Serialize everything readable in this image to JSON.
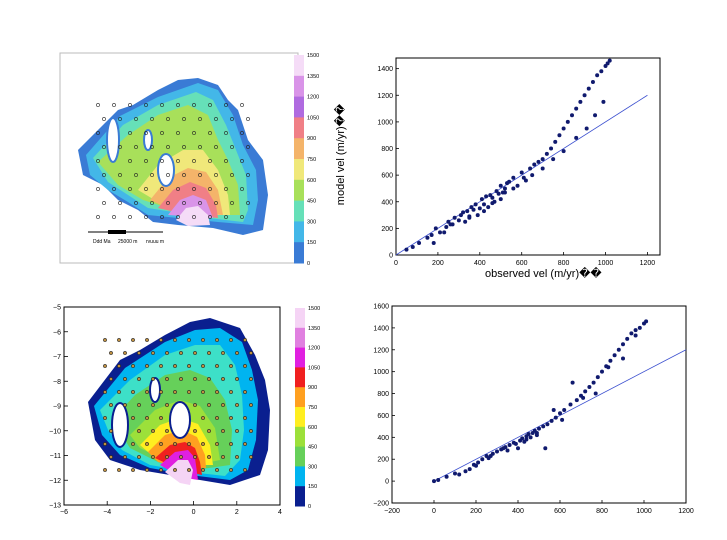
{
  "maps": {
    "top": {
      "cbar_ticks": [
        "1500",
        "1350",
        "1200",
        "1050",
        "900",
        "750",
        "600",
        "450",
        "300",
        "150",
        "0"
      ],
      "scalebar_labels": [
        "Ddd Ma",
        "25000 m",
        "rvuuu m"
      ]
    },
    "bottom": {
      "cbar_ticks": [
        "1500",
        "1350",
        "1200",
        "1050",
        "900",
        "750",
        "600",
        "450",
        "300",
        "150",
        "0"
      ],
      "xticks": [
        "−6",
        "−4",
        "−2",
        "0",
        "2",
        "4"
      ],
      "yticks": [
        "−5",
        "−6",
        "−7",
        "−8",
        "−9",
        "−10",
        "−11",
        "−12",
        "−13"
      ]
    }
  },
  "chart_data": [
    {
      "type": "scatter",
      "xlabel": "observed vel (m/yr)��",
      "ylabel": "model vel (m/yr)��",
      "xlim": [
        0,
        1260
      ],
      "ylim": [
        0,
        1480
      ],
      "xticks": [
        "0",
        "200",
        "400",
        "600",
        "800",
        "1000",
        "1200"
      ],
      "yticks": [
        "0",
        "200",
        "400",
        "600",
        "800",
        "1000",
        "1200",
        "1400"
      ],
      "line": {
        "x": [
          0,
          1200
        ],
        "y": [
          0,
          1200
        ]
      },
      "points": {
        "x": [
          50,
          80,
          110,
          150,
          170,
          190,
          210,
          240,
          250,
          260,
          280,
          300,
          310,
          320,
          330,
          340,
          350,
          360,
          370,
          380,
          390,
          400,
          410,
          420,
          430,
          440,
          450,
          460,
          470,
          480,
          490,
          500,
          510,
          520,
          530,
          540,
          560,
          580,
          600,
          620,
          640,
          660,
          680,
          700,
          720,
          740,
          760,
          780,
          800,
          820,
          840,
          860,
          880,
          900,
          920,
          940,
          960,
          980,
          1000,
          1010,
          1020,
          180,
          230,
          270,
          350,
          420,
          460,
          500,
          520,
          560,
          610,
          650,
          700,
          750,
          800,
          860,
          910,
          950,
          990
        ],
        "y": [
          40,
          60,
          90,
          130,
          150,
          200,
          170,
          210,
          250,
          230,
          280,
          260,
          300,
          320,
          250,
          330,
          290,
          360,
          340,
          380,
          300,
          350,
          420,
          380,
          440,
          360,
          450,
          430,
          400,
          480,
          460,
          520,
          470,
          500,
          540,
          550,
          580,
          520,
          620,
          560,
          650,
          680,
          700,
          720,
          760,
          800,
          850,
          900,
          950,
          1000,
          1050,
          1100,
          1150,
          1200,
          1250,
          1300,
          1350,
          1380,
          1420,
          1440,
          1460,
          90,
          170,
          230,
          280,
          330,
          390,
          420,
          470,
          500,
          580,
          600,
          650,
          720,
          780,
          880,
          950,
          1050,
          1150
        ]
      }
    },
    {
      "type": "scatter",
      "xlabel": "",
      "ylabel": "",
      "xlim": [
        -200,
        1200
      ],
      "ylim": [
        -200,
        1600
      ],
      "xticks": [
        "−200",
        "0",
        "200",
        "400",
        "600",
        "800",
        "1000",
        "1200"
      ],
      "yticks": [
        "−200",
        "0",
        "200",
        "400",
        "600",
        "800",
        "1000",
        "1200",
        "1400",
        "1600"
      ],
      "line": {
        "x": [
          0,
          1200
        ],
        "y": [
          0,
          1200
        ]
      },
      "points": {
        "x": [
          0,
          20,
          60,
          100,
          150,
          170,
          190,
          210,
          230,
          250,
          260,
          280,
          300,
          320,
          340,
          350,
          360,
          380,
          400,
          410,
          420,
          430,
          440,
          450,
          460,
          470,
          480,
          490,
          500,
          520,
          540,
          560,
          580,
          600,
          620,
          650,
          680,
          700,
          720,
          740,
          760,
          780,
          800,
          820,
          840,
          860,
          880,
          900,
          920,
          940,
          960,
          980,
          1000,
          1010,
          120,
          200,
          270,
          330,
          390,
          440,
          490,
          530,
          570,
          610,
          660,
          710,
          770,
          830,
          900,
          960
        ],
        "y": [
          0,
          10,
          40,
          70,
          90,
          110,
          150,
          170,
          200,
          230,
          210,
          250,
          270,
          290,
          310,
          280,
          330,
          350,
          300,
          370,
          390,
          360,
          410,
          430,
          400,
          440,
          460,
          420,
          480,
          500,
          520,
          550,
          580,
          620,
          650,
          700,
          740,
          780,
          820,
          860,
          900,
          950,
          1000,
          1050,
          1100,
          1150,
          1200,
          1250,
          1300,
          1350,
          1380,
          1400,
          1440,
          1460,
          60,
          140,
          230,
          300,
          340,
          380,
          440,
          300,
          650,
          560,
          900,
          760,
          800,
          1040,
          1120,
          1330
        ]
      }
    }
  ]
}
